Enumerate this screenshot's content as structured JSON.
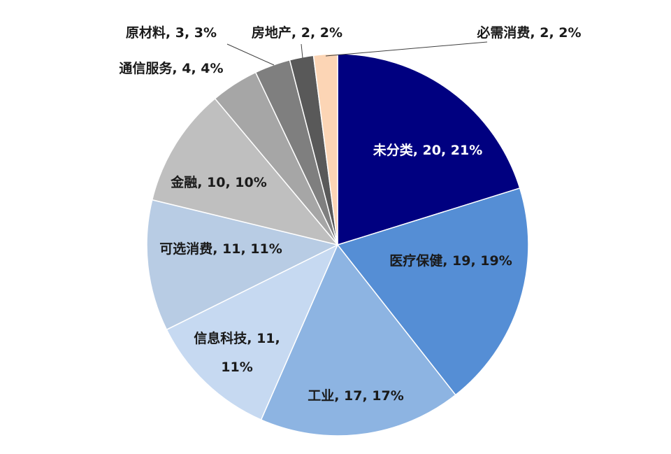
{
  "chart_data": {
    "type": "pie",
    "title": "",
    "start_angle_deg": 0,
    "direction": "clockwise",
    "slices": [
      {
        "category": "未分类",
        "value": 20,
        "percent": "21%",
        "label_lines": [
          "未分类, 20, 21%"
        ],
        "color": "#000080",
        "label_color": "#ffffff"
      },
      {
        "category": "医疗保健",
        "value": 19,
        "percent": "19%",
        "label_lines": [
          "医疗保健, 19, 19%"
        ],
        "color": "#558ED5",
        "label_color": "#1a1a1a"
      },
      {
        "category": "工业",
        "value": 17,
        "percent": "17%",
        "label_lines": [
          "工业, 17, 17%"
        ],
        "color": "#8DB4E2",
        "label_color": "#1a1a1a"
      },
      {
        "category": "信息科技",
        "value": 11,
        "percent": "11%",
        "label_lines": [
          "信息科技, 11,",
          "11%"
        ],
        "color": "#C6D9F1",
        "label_color": "#1a1a1a"
      },
      {
        "category": "可选消费",
        "value": 11,
        "percent": "11%",
        "label_lines": [
          "可选消费, 11, 11%"
        ],
        "color": "#B8CCE4",
        "label_color": "#1a1a1a"
      },
      {
        "category": "金融",
        "value": 10,
        "percent": "10%",
        "label_lines": [
          "金融, 10, 10%"
        ],
        "color": "#BFBFBF",
        "label_color": "#1a1a1a"
      },
      {
        "category": "通信服务",
        "value": 4,
        "percent": "4%",
        "label_lines": [
          "通信服务, 4, 4%"
        ],
        "color": "#A6A6A6",
        "label_color": "#1a1a1a"
      },
      {
        "category": "原材料",
        "value": 3,
        "percent": "3%",
        "label_lines": [
          "原材料, 3, 3%"
        ],
        "color": "#7F7F7F",
        "label_color": "#1a1a1a"
      },
      {
        "category": "房地产",
        "value": 2,
        "percent": "2%",
        "label_lines": [
          "房地产, 2, 2%"
        ],
        "color": "#595959",
        "label_color": "#1a1a1a"
      },
      {
        "category": "必需消费",
        "value": 2,
        "percent": "2%",
        "label_lines": [
          "必需消费, 2, 2%"
        ],
        "color": "#FCD5B5",
        "label_color": "#1a1a1a"
      }
    ]
  }
}
